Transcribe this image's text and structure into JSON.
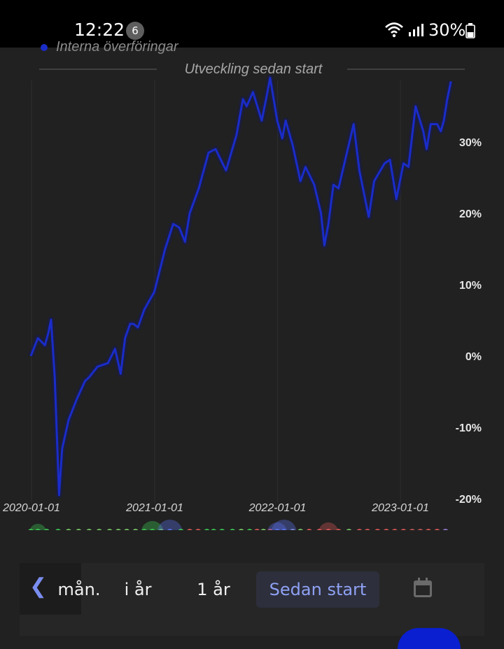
{
  "status_bar": {
    "time": "12:22",
    "notification_count": "6",
    "battery": "30%"
  },
  "legend": {
    "label": "Interna överföringar",
    "color": "#1a2cc8"
  },
  "chart_data": {
    "type": "line",
    "title": "Utveckling sedan start",
    "x": [
      "2019-12-30",
      "2020-01-20",
      "2020-02-10",
      "2020-02-20",
      "2020-02-28",
      "2020-03-10",
      "2020-03-23",
      "2020-04-01",
      "2020-04-20",
      "2020-05-15",
      "2020-06-08",
      "2020-06-20",
      "2020-07-15",
      "2020-08-15",
      "2020-09-05",
      "2020-09-22",
      "2020-10-05",
      "2020-10-20",
      "2020-10-30",
      "2020-11-12",
      "2020-12-01",
      "2020-12-31",
      "2021-02-01",
      "2021-02-25",
      "2021-03-15",
      "2021-04-01",
      "2021-04-15",
      "2021-05-12",
      "2021-06-10",
      "2021-07-01",
      "2021-08-01",
      "2021-09-01",
      "2021-09-20",
      "2021-10-01",
      "2021-10-20",
      "2021-11-15",
      "2021-11-30",
      "2021-12-10",
      "2021-12-31",
      "2022-01-15",
      "2022-01-25",
      "2022-02-15",
      "2022-03-10",
      "2022-03-25",
      "2022-04-20",
      "2022-05-10",
      "2022-05-20",
      "2022-06-01",
      "2022-06-16",
      "2022-07-01",
      "2022-08-15",
      "2022-09-01",
      "2022-09-29",
      "2022-10-15",
      "2022-11-15",
      "2022-12-01",
      "2022-12-20",
      "2023-01-10",
      "2023-01-25",
      "2023-02-15",
      "2023-03-10",
      "2023-03-20",
      "2023-04-01",
      "2023-04-20",
      "2023-05-01",
      "2023-05-10",
      "2023-05-20",
      "2023-05-31"
    ],
    "series": [
      {
        "name": "Interna överföringar",
        "color": "#1a2cc8",
        "values": [
          0.0,
          2.5,
          1.5,
          3.2,
          5.1,
          -3.0,
          -19.5,
          -13.0,
          -9.0,
          -6.0,
          -3.5,
          -3.0,
          -1.5,
          -1.0,
          1.0,
          -2.5,
          2.5,
          4.5,
          4.5,
          4.0,
          6.5,
          9.0,
          15.0,
          18.5,
          18.0,
          16.0,
          20.0,
          23.5,
          28.5,
          29.0,
          26.0,
          31.0,
          36.0,
          35.0,
          37.0,
          33.0,
          36.5,
          39.0,
          33.0,
          30.5,
          33.0,
          29.5,
          24.5,
          26.5,
          24.0,
          20.0,
          15.5,
          18.5,
          24.0,
          23.5,
          32.5,
          26.0,
          19.5,
          24.5,
          27.0,
          27.5,
          22.0,
          27.0,
          26.5,
          35.0,
          31.5,
          29.0,
          32.5,
          32.5,
          31.5,
          33.0,
          36.0,
          38.5
        ]
      }
    ],
    "x_ticks": [
      "2020-01-01",
      "2021-01-01",
      "2022-01-01",
      "2023-01-01"
    ],
    "y_ticks": [
      "30%",
      "20%",
      "10%",
      "0%",
      "-10%",
      "-20%"
    ],
    "ylim": [
      -20,
      39
    ],
    "grid": true,
    "legend_position": "top-left"
  },
  "event_dots": [
    {
      "date": "2019-12-30",
      "color": "#3fcf55",
      "size": 8
    },
    {
      "date": "2020-01-20",
      "color": "#3fcf55",
      "size": 12
    },
    {
      "date": "2020-02-15",
      "color": "#3fcf55",
      "size": 8
    },
    {
      "date": "2020-03-20",
      "color": "#3fcf55",
      "size": 6
    },
    {
      "date": "2020-04-20",
      "color": "#7fcf6a",
      "size": 6
    },
    {
      "date": "2020-05-20",
      "color": "#7fcf6a",
      "size": 6
    },
    {
      "date": "2020-06-20",
      "color": "#7fcf6a",
      "size": 6
    },
    {
      "date": "2020-07-20",
      "color": "#7fcf6a",
      "size": 6
    },
    {
      "date": "2020-08-20",
      "color": "#7fcf6a",
      "size": 6
    },
    {
      "date": "2020-09-15",
      "color": "#7fcf6a",
      "size": 6
    },
    {
      "date": "2020-10-10",
      "color": "#7fcf6a",
      "size": 6
    },
    {
      "date": "2020-11-05",
      "color": "#7fcf6a",
      "size": 6
    },
    {
      "date": "2020-12-01",
      "color": "#3fcf55",
      "size": 8
    },
    {
      "date": "2020-12-25",
      "color": "#3fcf55",
      "size": 16
    },
    {
      "date": "2021-01-20",
      "color": "#7fcf6a",
      "size": 6
    },
    {
      "date": "2021-02-15",
      "color": "#5b74f0",
      "size": 18
    },
    {
      "date": "2021-03-20",
      "color": "#3fcf55",
      "size": 10
    },
    {
      "date": "2021-04-15",
      "color": "#e05a5a",
      "size": 6
    },
    {
      "date": "2021-05-10",
      "color": "#e05a5a",
      "size": 6
    },
    {
      "date": "2021-06-05",
      "color": "#3fcf55",
      "size": 6
    },
    {
      "date": "2021-06-25",
      "color": "#3fcf55",
      "size": 8
    },
    {
      "date": "2021-07-20",
      "color": "#3fcf55",
      "size": 6
    },
    {
      "date": "2021-08-20",
      "color": "#3fcf55",
      "size": 8
    },
    {
      "date": "2021-09-15",
      "color": "#7fcf6a",
      "size": 6
    },
    {
      "date": "2021-10-10",
      "color": "#3fcf55",
      "size": 10
    },
    {
      "date": "2021-11-01",
      "color": "#e05a5a",
      "size": 6
    },
    {
      "date": "2021-11-20",
      "color": "#7fcf6a",
      "size": 6
    },
    {
      "date": "2021-12-10",
      "color": "#e05a5a",
      "size": 6
    },
    {
      "date": "2021-12-31",
      "color": "#5b74f0",
      "size": 14
    },
    {
      "date": "2022-01-20",
      "color": "#5b74f0",
      "size": 18
    },
    {
      "date": "2022-02-15",
      "color": "#7f90e0",
      "size": 10
    },
    {
      "date": "2022-03-10",
      "color": "#7fcf6a",
      "size": 6
    },
    {
      "date": "2022-04-05",
      "color": "#e05a5a",
      "size": 6
    },
    {
      "date": "2022-05-05",
      "color": "#e05a5a",
      "size": 6
    },
    {
      "date": "2022-06-01",
      "color": "#e05a5a",
      "size": 14
    },
    {
      "date": "2022-07-01",
      "color": "#e05a5a",
      "size": 6
    },
    {
      "date": "2022-08-01",
      "color": "#7fcf6a",
      "size": 8
    },
    {
      "date": "2022-09-01",
      "color": "#e05a5a",
      "size": 6
    },
    {
      "date": "2022-09-25",
      "color": "#e05a5a",
      "size": 10
    },
    {
      "date": "2022-10-25",
      "color": "#e05a5a",
      "size": 6
    },
    {
      "date": "2022-11-20",
      "color": "#e05a5a",
      "size": 6
    },
    {
      "date": "2022-12-15",
      "color": "#e05a5a",
      "size": 6
    },
    {
      "date": "2023-01-10",
      "color": "#e05a5a",
      "size": 6
    },
    {
      "date": "2023-02-05",
      "color": "#c85a5a",
      "size": 6
    },
    {
      "date": "2023-03-01",
      "color": "#c85a5a",
      "size": 6
    },
    {
      "date": "2023-03-25",
      "color": "#e05a5a",
      "size": 6
    },
    {
      "date": "2023-04-20",
      "color": "#e05a5a",
      "size": 6
    },
    {
      "date": "2023-05-15",
      "color": "#9a7ad8",
      "size": 6
    }
  ],
  "tabs": [
    {
      "label": "mån.",
      "active": false
    },
    {
      "label": "i år",
      "active": false
    },
    {
      "label": "1 år",
      "active": false
    },
    {
      "label": "Sedan start",
      "active": true
    }
  ],
  "icons": {
    "back": "chevron-left-icon",
    "calendar": "calendar-icon"
  }
}
